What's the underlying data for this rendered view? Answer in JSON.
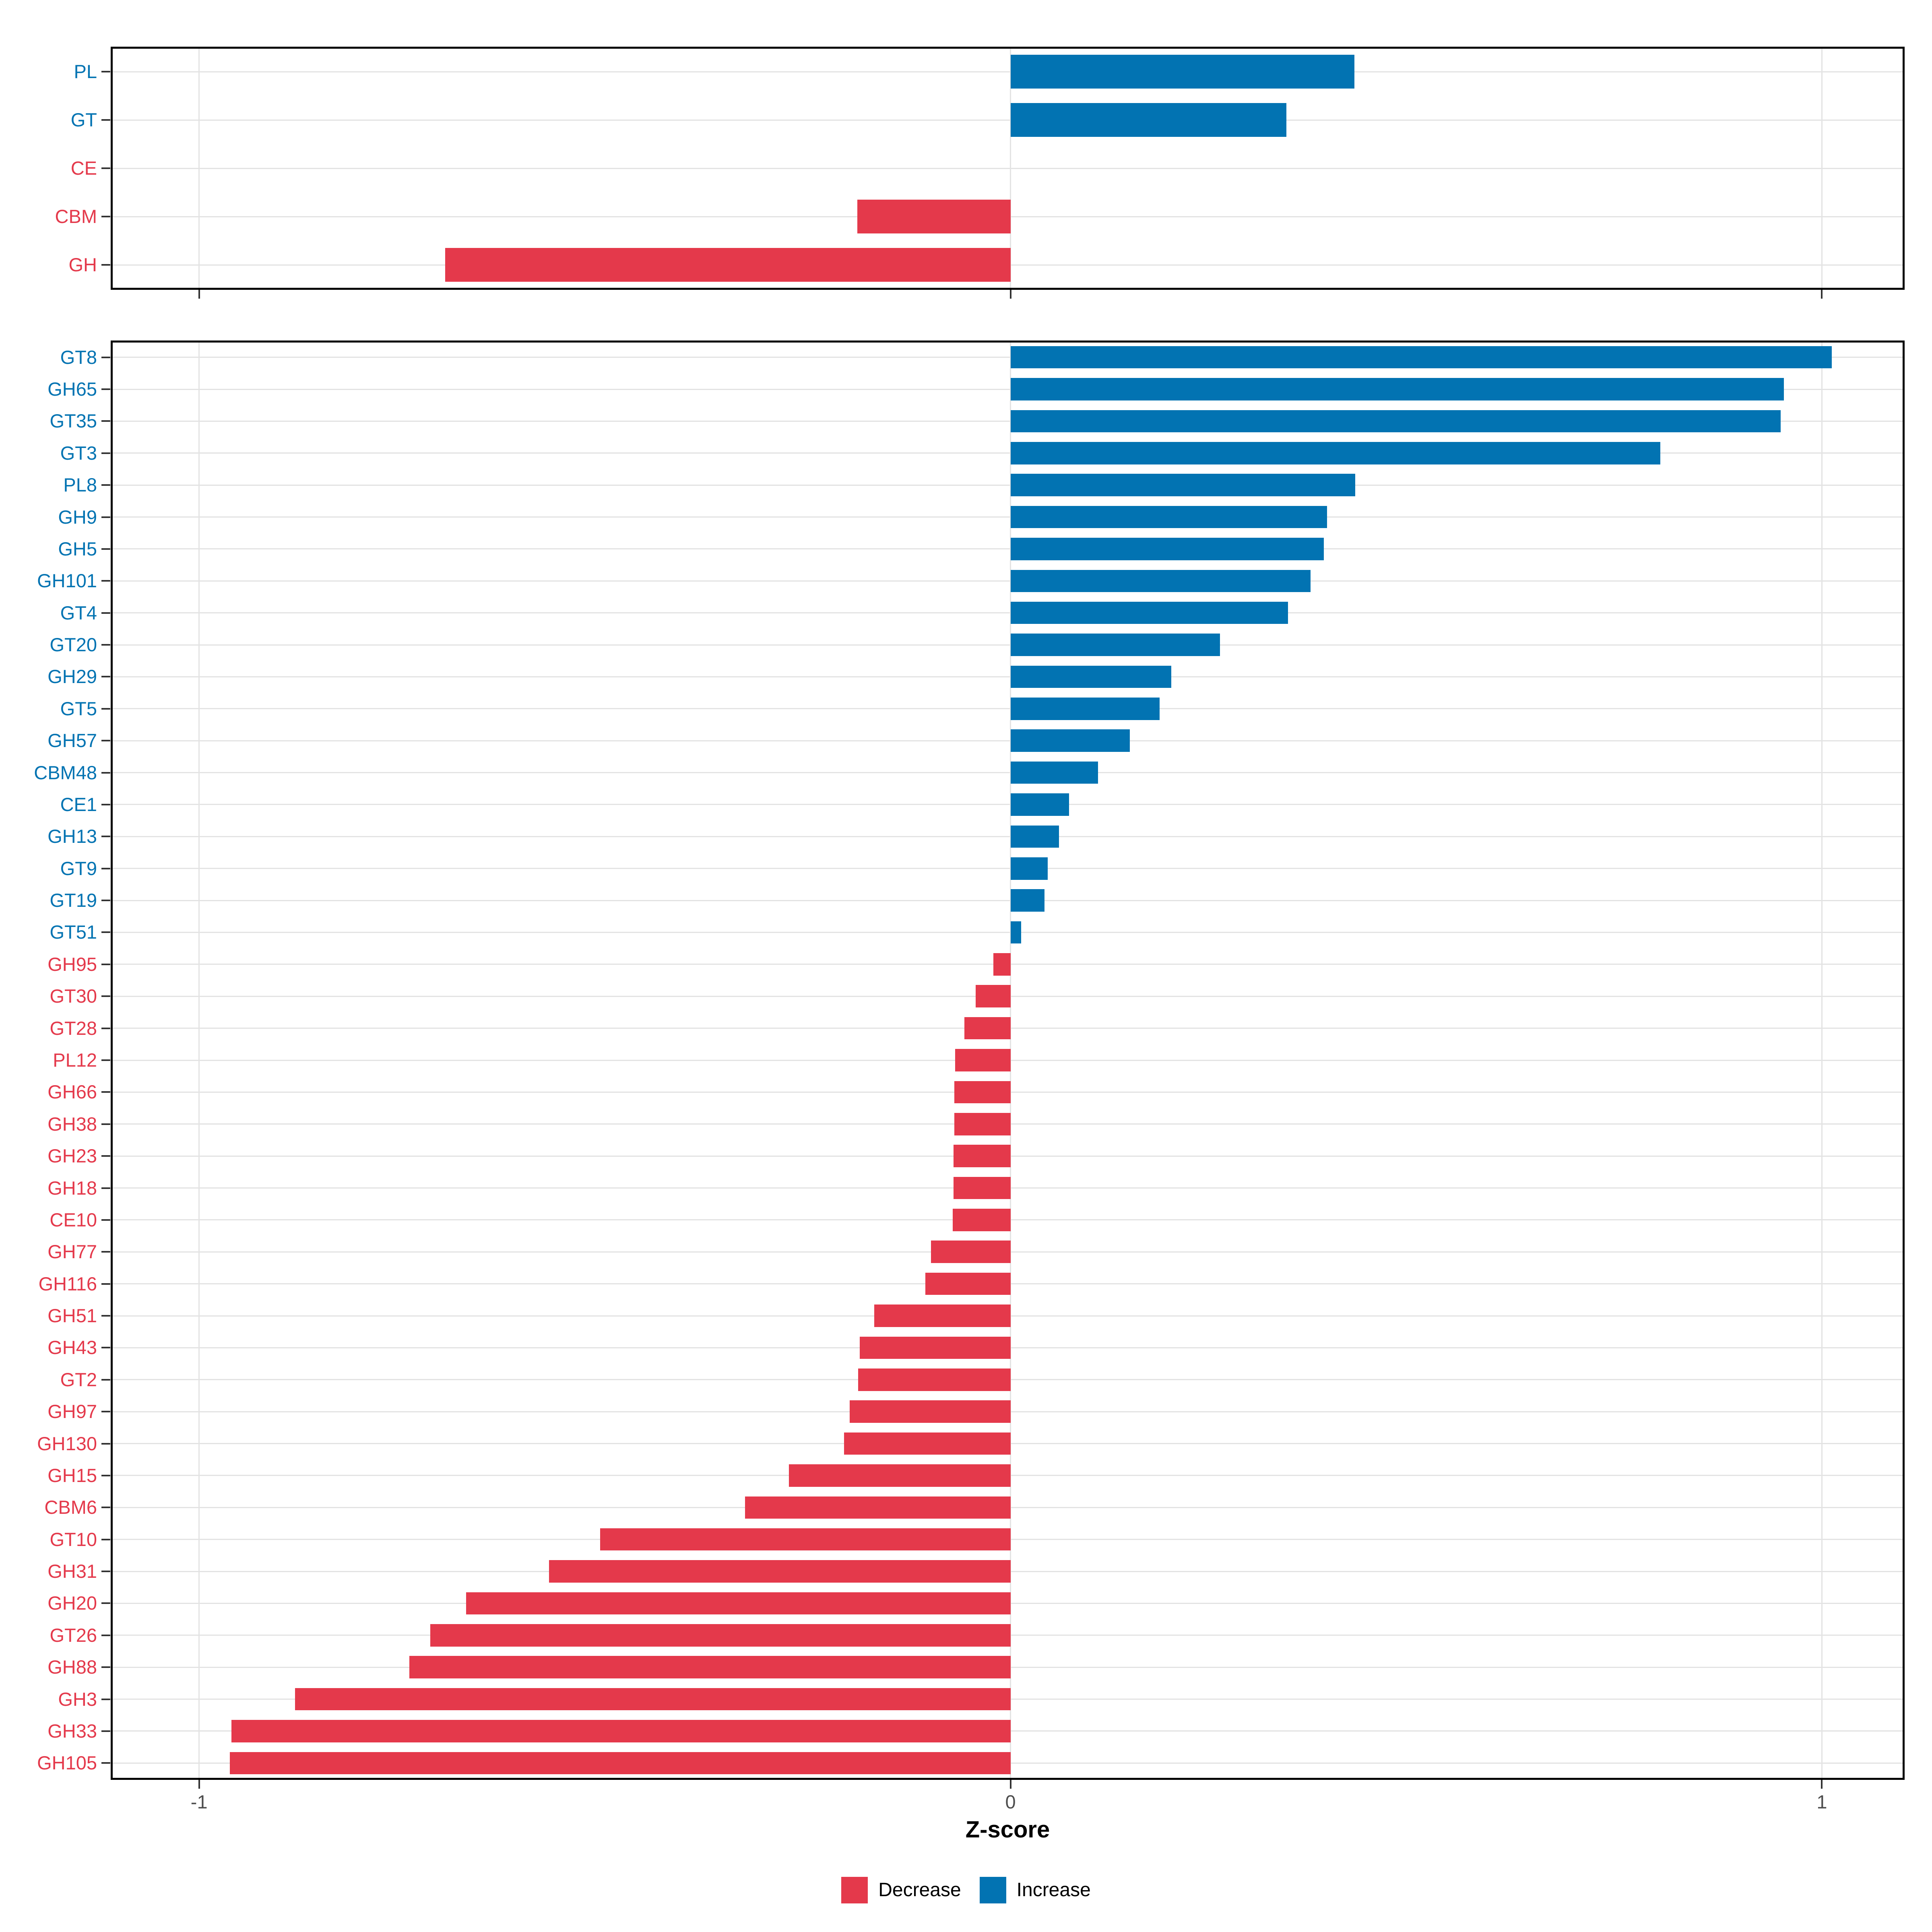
{
  "chart_data": {
    "type": "bar",
    "orientation": "horizontal",
    "title": "",
    "xlabel": "Z-score",
    "ylabel": "",
    "xlim": [
      -1.108,
      1.101
    ],
    "x_ticks": [
      -1,
      0,
      1
    ],
    "x_tick_labels": [
      "-1",
      "0",
      "1"
    ],
    "grid": "major vertical at ticks, one horizontal line per category",
    "legend_position": "bottom-center",
    "colors": {
      "decrease": "#E4394B",
      "increase": "#0273B2",
      "gridline": "#E3E3E3",
      "axis_text": "#4D4D4D",
      "tick_mark": "#333333",
      "panel_border": "#000000",
      "background": "#FFFFFF"
    },
    "legend": [
      {
        "label": "Decrease",
        "direction": "decrease"
      },
      {
        "label": "Increase",
        "direction": "increase"
      }
    ],
    "panels": [
      {
        "name": "cazyme-class-panel",
        "categories": [
          "PL",
          "GT",
          "CE",
          "CBM",
          "GH"
        ],
        "values": [
          0.424,
          0.34,
          0.0,
          -0.189,
          -0.697
        ],
        "directions": [
          "increase",
          "increase",
          "decrease",
          "decrease",
          "decrease"
        ]
      },
      {
        "name": "cazyme-family-panel",
        "categories": [
          "GT8",
          "GH65",
          "GT35",
          "GT3",
          "PL8",
          "GH9",
          "GH5",
          "GH101",
          "GT4",
          "GT20",
          "GH29",
          "GT5",
          "GH57",
          "CBM48",
          "CE1",
          "GH13",
          "GT9",
          "GT19",
          "GT51",
          "GH95",
          "GT30",
          "GT28",
          "PL12",
          "GH66",
          "GH38",
          "GH23",
          "GH18",
          "CE10",
          "GH77",
          "GH116",
          "GH51",
          "GH43",
          "GT2",
          "GH97",
          "GH130",
          "GH15",
          "CBM6",
          "GT10",
          "GH31",
          "GH20",
          "GT26",
          "GH88",
          "GH3",
          "GH33",
          "GH105"
        ],
        "values": [
          1.012,
          0.953,
          0.949,
          0.801,
          0.425,
          0.39,
          0.386,
          0.37,
          0.342,
          0.258,
          0.198,
          0.184,
          0.147,
          0.108,
          0.072,
          0.06,
          0.046,
          0.042,
          0.013,
          -0.021,
          -0.043,
          -0.057,
          -0.068,
          -0.069,
          -0.069,
          -0.07,
          -0.07,
          -0.071,
          -0.098,
          -0.105,
          -0.168,
          -0.186,
          -0.188,
          -0.198,
          -0.205,
          -0.273,
          -0.327,
          -0.506,
          -0.569,
          -0.671,
          -0.715,
          -0.741,
          -0.882,
          -0.96,
          -0.962
        ],
        "directions": [
          "increase",
          "increase",
          "increase",
          "increase",
          "increase",
          "increase",
          "increase",
          "increase",
          "increase",
          "increase",
          "increase",
          "increase",
          "increase",
          "increase",
          "increase",
          "increase",
          "increase",
          "increase",
          "increase",
          "decrease",
          "decrease",
          "decrease",
          "decrease",
          "decrease",
          "decrease",
          "decrease",
          "decrease",
          "decrease",
          "decrease",
          "decrease",
          "decrease",
          "decrease",
          "decrease",
          "decrease",
          "decrease",
          "decrease",
          "decrease",
          "decrease",
          "decrease",
          "decrease",
          "decrease",
          "decrease",
          "decrease",
          "decrease",
          "decrease"
        ]
      }
    ]
  }
}
